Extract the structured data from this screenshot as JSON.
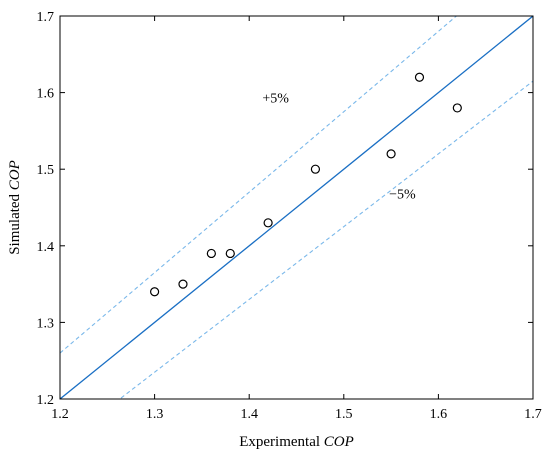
{
  "chart_data": {
    "type": "scatter",
    "xlabel": {
      "prefix": "Experimental ",
      "italic": "COP"
    },
    "ylabel": {
      "prefix": "Simulated ",
      "italic": "COP"
    },
    "xlim": [
      1.2,
      1.7
    ],
    "ylim": [
      1.2,
      1.7
    ],
    "xticks": [
      1.2,
      1.3,
      1.4,
      1.5,
      1.6,
      1.7
    ],
    "yticks": [
      1.2,
      1.3,
      1.4,
      1.5,
      1.6,
      1.7
    ],
    "tick_labels_x": [
      "1.2",
      "1.3",
      "1.4",
      "1.5",
      "1.6",
      "1.7"
    ],
    "tick_labels_y": [
      "1.2",
      "1.3",
      "1.4",
      "1.5",
      "1.6",
      "1.7"
    ],
    "grid": false,
    "points": [
      {
        "x": 1.3,
        "y": 1.34
      },
      {
        "x": 1.33,
        "y": 1.35
      },
      {
        "x": 1.36,
        "y": 1.39
      },
      {
        "x": 1.38,
        "y": 1.39
      },
      {
        "x": 1.42,
        "y": 1.43
      },
      {
        "x": 1.47,
        "y": 1.5
      },
      {
        "x": 1.55,
        "y": 1.52
      },
      {
        "x": 1.58,
        "y": 1.62
      },
      {
        "x": 1.62,
        "y": 1.58
      }
    ],
    "reference_lines": [
      {
        "id": "ideal",
        "slope": 1.0,
        "style": "solid"
      },
      {
        "id": "plus5",
        "slope": 1.05,
        "style": "dashed",
        "label": "+5%"
      },
      {
        "id": "minus5",
        "slope": 0.95,
        "style": "dashed",
        "label": "−5%"
      }
    ],
    "annotations": [
      {
        "text": "+5%",
        "x": 1.428,
        "y": 1.587
      },
      {
        "text": "−5%",
        "x": 1.562,
        "y": 1.462
      }
    ],
    "colors": {
      "ideal_line": "#1a6fc4",
      "tolerance_lines": "#7ab8ea",
      "markers": "#000000",
      "axes": "#000000"
    }
  }
}
